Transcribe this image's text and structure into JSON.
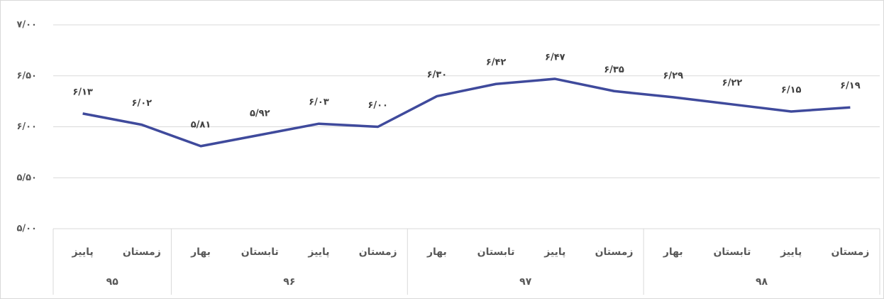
{
  "chart_data": {
    "type": "line",
    "categories": [
      "پاییز",
      "زمستان",
      "بهار",
      "تابستان",
      "پاییز",
      "زمستان",
      "بهار",
      "تابستان",
      "پاییز",
      "زمستان",
      "بهار",
      "تابستان",
      "پاییز",
      "زمستان"
    ],
    "groups": [
      {
        "label": "۹۵",
        "span": 2
      },
      {
        "label": "۹۶",
        "span": 4
      },
      {
        "label": "۹۷",
        "span": 4
      },
      {
        "label": "۹۸",
        "span": 4
      }
    ],
    "series": [
      {
        "color": "#3f4a9c",
        "values": [
          6.13,
          6.02,
          5.81,
          5.92,
          6.03,
          6.0,
          6.3,
          6.42,
          6.47,
          6.35,
          6.29,
          6.22,
          6.15,
          6.19
        ],
        "value_labels": [
          "۶/۱۳",
          "۶/۰۲",
          "۵/۸۱",
          "۵/۹۲",
          "۶/۰۳",
          "۶/۰۰",
          "۶/۳۰",
          "۶/۴۲",
          "۶/۴۷",
          "۶/۳۵",
          "۶/۲۹",
          "۶/۲۲",
          "۶/۱۵",
          "۶/۱۹"
        ]
      }
    ],
    "ylim": [
      5,
      7
    ],
    "yticks": [
      {
        "value": 5,
        "label": "۵/۰۰"
      },
      {
        "value": 5.5,
        "label": "۵/۵۰"
      },
      {
        "value": 6,
        "label": "۶/۰۰"
      },
      {
        "value": 6.5,
        "label": "۶/۵۰"
      },
      {
        "value": 7,
        "label": "۷/۰۰"
      }
    ],
    "grid": true
  }
}
